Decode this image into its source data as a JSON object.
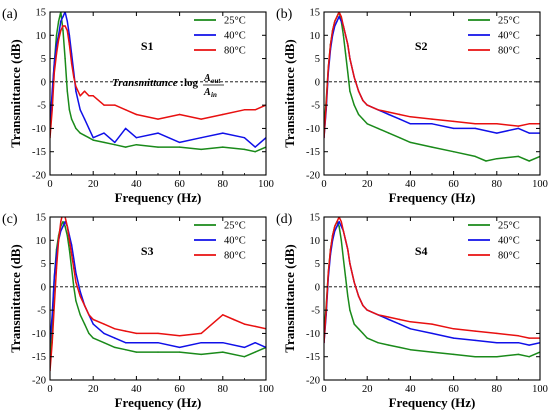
{
  "colors": {
    "c25": "#1a8a1a",
    "c40": "#1010e8",
    "c80": "#e81010"
  },
  "chart_data": [
    {
      "type": "line",
      "panel_label": "(a)",
      "title": "S1",
      "annotation": {
        "prefix": "Transmittance",
        "equation": "log",
        "numerator": "A",
        "numerator_sub": "out",
        "denominator": "A",
        "denominator_sub": "in"
      },
      "xlabel": "Frequency (Hz)",
      "ylabel": "Transmittance (dB)",
      "xlim": [
        0,
        100
      ],
      "ylim": [
        -20,
        15
      ],
      "xticks": [
        0,
        20,
        40,
        60,
        80,
        100
      ],
      "yticks": [
        -20,
        -15,
        -10,
        -5,
        0,
        5,
        10,
        15
      ],
      "reference_line_y": 0,
      "legend": "top-right",
      "series": [
        {
          "name": "25°C",
          "color_key": "c25",
          "x": [
            0,
            1,
            2,
            3,
            4,
            5,
            6,
            7,
            8,
            9,
            10,
            11,
            12,
            14,
            16,
            18,
            20,
            25,
            30,
            35,
            40,
            50,
            60,
            70,
            80,
            90,
            95,
            100
          ],
          "y": [
            -8,
            -3,
            4,
            10,
            13,
            15,
            11,
            5,
            -2,
            -6,
            -8,
            -9,
            -10,
            -11,
            -11.5,
            -12,
            -12.5,
            -13,
            -13.5,
            -14,
            -13.5,
            -14,
            -14,
            -14.5,
            -14,
            -14.5,
            -15,
            -14
          ]
        },
        {
          "name": "40°C",
          "color_key": "c40",
          "x": [
            0,
            1,
            2,
            3,
            4,
            5,
            6,
            7,
            8,
            9,
            10,
            11,
            12,
            14,
            16,
            18,
            20,
            25,
            30,
            35,
            40,
            50,
            60,
            70,
            80,
            90,
            95,
            100
          ],
          "y": [
            -10,
            -2,
            4,
            8,
            10,
            13,
            14,
            15,
            13,
            10,
            6,
            2,
            -2,
            -6,
            -8,
            -10,
            -12,
            -11,
            -13,
            -10,
            -12,
            -11,
            -13,
            -12,
            -11,
            -12,
            -14,
            -12
          ]
        },
        {
          "name": "80°C",
          "color_key": "c80",
          "x": [
            0,
            1,
            2,
            3,
            4,
            5,
            6,
            7,
            8,
            9,
            10,
            11,
            12,
            14,
            16,
            18,
            20,
            25,
            30,
            35,
            40,
            50,
            60,
            70,
            80,
            90,
            95,
            100
          ],
          "y": [
            -12,
            -6,
            2,
            6,
            9,
            11,
            12,
            12,
            11,
            8,
            4,
            1,
            -1,
            -3,
            -2,
            -3,
            -3,
            -5,
            -5,
            -6,
            -7,
            -8,
            -7,
            -8,
            -7,
            -6,
            -6,
            -5
          ]
        }
      ]
    },
    {
      "type": "line",
      "panel_label": "(b)",
      "title": "S2",
      "xlabel": "Frequency (Hz)",
      "ylabel": "Transmittance (dB)",
      "xlim": [
        0,
        100
      ],
      "ylim": [
        -20,
        15
      ],
      "xticks": [
        0,
        20,
        40,
        60,
        80,
        100
      ],
      "yticks": [
        -20,
        -15,
        -10,
        -5,
        0,
        5,
        10,
        15
      ],
      "reference_line_y": 0,
      "legend": "top-right",
      "series": [
        {
          "name": "25°C",
          "color_key": "c25",
          "x": [
            0,
            1,
            2,
            3,
            4,
            5,
            6,
            7,
            8,
            9,
            10,
            11,
            12,
            14,
            16,
            18,
            20,
            25,
            30,
            35,
            40,
            50,
            60,
            70,
            75,
            80,
            90,
            95,
            100
          ],
          "y": [
            -10,
            -4,
            3,
            8,
            11,
            13,
            14,
            15,
            13,
            10,
            6,
            2,
            -2,
            -5,
            -7,
            -8,
            -9,
            -10,
            -11,
            -12,
            -13,
            -14,
            -15,
            -16,
            -17,
            -16.5,
            -16,
            -17,
            -16
          ]
        },
        {
          "name": "40°C",
          "color_key": "c40",
          "x": [
            0,
            1,
            2,
            3,
            4,
            5,
            6,
            7,
            8,
            9,
            10,
            11,
            12,
            14,
            16,
            18,
            20,
            25,
            30,
            35,
            40,
            50,
            60,
            70,
            80,
            90,
            95,
            100
          ],
          "y": [
            -12,
            -6,
            2,
            7,
            10,
            12,
            13,
            14,
            13,
            12,
            10,
            8,
            5,
            1,
            -2,
            -4,
            -5,
            -6,
            -7,
            -8,
            -9,
            -9,
            -10,
            -10,
            -11,
            -10,
            -11,
            -11
          ]
        },
        {
          "name": "80°C",
          "color_key": "c80",
          "x": [
            0,
            1,
            2,
            3,
            4,
            5,
            6,
            7,
            8,
            9,
            10,
            11,
            12,
            14,
            16,
            18,
            20,
            25,
            30,
            35,
            40,
            50,
            60,
            70,
            80,
            90,
            95,
            100
          ],
          "y": [
            -12,
            -5,
            3,
            8,
            11,
            13,
            14,
            15,
            14,
            12,
            10,
            8,
            5,
            1,
            -2,
            -4,
            -5,
            -6,
            -6.5,
            -7,
            -7.5,
            -8,
            -8.5,
            -9,
            -9,
            -9.5,
            -9,
            -9
          ]
        }
      ]
    },
    {
      "type": "line",
      "panel_label": "(c)",
      "title": "S3",
      "xlabel": "Frequency (Hz)",
      "ylabel": "Transmittance (dB)",
      "xlim": [
        0,
        100
      ],
      "ylim": [
        -20,
        15
      ],
      "xticks": [
        0,
        20,
        40,
        60,
        80,
        100
      ],
      "yticks": [
        -20,
        -15,
        -10,
        -5,
        0,
        5,
        10,
        15
      ],
      "reference_line_y": 0,
      "legend": "top-right",
      "series": [
        {
          "name": "25°C",
          "color_key": "c25",
          "x": [
            0,
            1,
            2,
            3,
            4,
            5,
            6,
            7,
            8,
            9,
            10,
            11,
            12,
            14,
            16,
            18,
            20,
            25,
            30,
            35,
            40,
            50,
            60,
            70,
            80,
            90,
            95,
            100
          ],
          "y": [
            -15,
            -8,
            2,
            8,
            11,
            13,
            14,
            13,
            11,
            8,
            4,
            0,
            -3,
            -6,
            -8,
            -10,
            -11,
            -12,
            -13,
            -13.5,
            -14,
            -14,
            -14,
            -14.5,
            -14,
            -15,
            -14,
            -13
          ]
        },
        {
          "name": "40°C",
          "color_key": "c40",
          "x": [
            0,
            1,
            2,
            3,
            4,
            5,
            6,
            7,
            8,
            9,
            10,
            11,
            12,
            14,
            16,
            18,
            20,
            25,
            30,
            35,
            40,
            50,
            60,
            70,
            80,
            90,
            95,
            100
          ],
          "y": [
            -12,
            -6,
            2,
            7,
            10,
            12,
            13,
            14,
            13,
            11,
            9,
            6,
            3,
            -1,
            -4,
            -6,
            -8,
            -10,
            -11,
            -12,
            -12,
            -12,
            -13,
            -12,
            -12,
            -13,
            -12,
            -13
          ]
        },
        {
          "name": "80°C",
          "color_key": "c80",
          "x": [
            0,
            1,
            2,
            3,
            4,
            5,
            6,
            7,
            8,
            9,
            10,
            11,
            12,
            14,
            16,
            18,
            20,
            25,
            30,
            35,
            40,
            50,
            60,
            70,
            80,
            85,
            90,
            95,
            100
          ],
          "y": [
            -18,
            -12,
            -4,
            4,
            10,
            14,
            16,
            15,
            13,
            10,
            7,
            4,
            1,
            -2,
            -4,
            -6,
            -7,
            -8,
            -9,
            -9.5,
            -10,
            -10,
            -10.5,
            -10,
            -6,
            -7,
            -8,
            -8.5,
            -9
          ]
        }
      ]
    },
    {
      "type": "line",
      "panel_label": "(d)",
      "title": "S4",
      "xlabel": "Frequency (Hz)",
      "ylabel": "Transmittance (dB)",
      "xlim": [
        0,
        100
      ],
      "ylim": [
        -20,
        15
      ],
      "xticks": [
        0,
        20,
        40,
        60,
        80,
        100
      ],
      "yticks": [
        -20,
        -15,
        -10,
        -5,
        0,
        5,
        10,
        15
      ],
      "reference_line_y": 0,
      "legend": "top-right",
      "series": [
        {
          "name": "25°C",
          "color_key": "c25",
          "x": [
            0,
            1,
            2,
            3,
            4,
            5,
            6,
            7,
            8,
            9,
            10,
            11,
            12,
            14,
            16,
            18,
            20,
            25,
            30,
            35,
            40,
            50,
            60,
            70,
            80,
            90,
            95,
            100
          ],
          "y": [
            -10,
            -4,
            3,
            8,
            11,
            13,
            14,
            13,
            10,
            6,
            2,
            -2,
            -5,
            -8,
            -9,
            -10,
            -11,
            -12,
            -12.5,
            -13,
            -13.5,
            -14,
            -14.5,
            -15,
            -15,
            -14.5,
            -15,
            -14
          ]
        },
        {
          "name": "40°C",
          "color_key": "c40",
          "x": [
            0,
            1,
            2,
            3,
            4,
            5,
            6,
            7,
            8,
            9,
            10,
            11,
            12,
            14,
            16,
            18,
            20,
            25,
            30,
            35,
            40,
            50,
            60,
            70,
            80,
            90,
            95,
            100
          ],
          "y": [
            -12,
            -6,
            2,
            7,
            10,
            12,
            13,
            14,
            13,
            12,
            10,
            8,
            5,
            1,
            -2,
            -4,
            -5,
            -6,
            -7,
            -8,
            -9,
            -10,
            -11,
            -11.5,
            -12,
            -12,
            -12.5,
            -12
          ]
        },
        {
          "name": "80°C",
          "color_key": "c80",
          "x": [
            0,
            1,
            2,
            3,
            4,
            5,
            6,
            7,
            8,
            9,
            10,
            11,
            12,
            14,
            16,
            18,
            20,
            25,
            30,
            35,
            40,
            50,
            60,
            70,
            80,
            90,
            95,
            100
          ],
          "y": [
            -12,
            -5,
            3,
            8,
            11,
            13,
            14,
            15,
            14,
            12,
            10,
            8,
            5,
            1,
            -2,
            -4,
            -5,
            -6,
            -6.5,
            -7,
            -7.5,
            -8,
            -9,
            -9.5,
            -10,
            -10.5,
            -11,
            -11
          ]
        }
      ]
    }
  ]
}
